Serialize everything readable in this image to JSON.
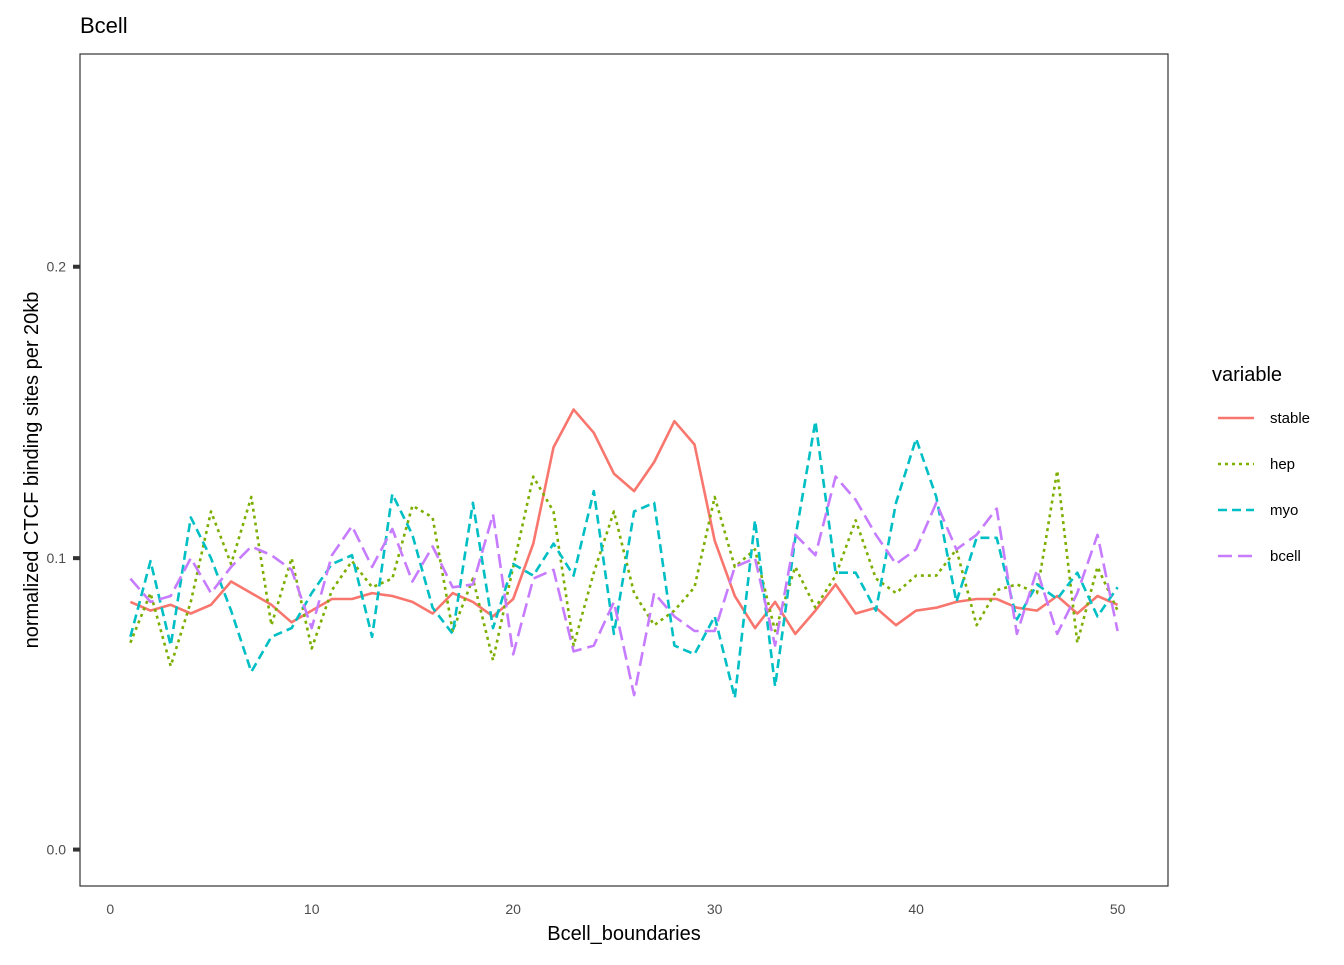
{
  "chart_data": {
    "type": "line",
    "title": "Bcell",
    "xlabel": "Bcell_boundaries",
    "ylabel": "normalized CTCF binding sites per 20kb",
    "xlim": [
      -1.5,
      52.5
    ],
    "ylim": [
      -0.0125,
      0.273
    ],
    "x_ticks": [
      0,
      10,
      20,
      30,
      40,
      50
    ],
    "y_ticks": [
      0.0,
      0.1,
      0.2
    ],
    "x_tick_labels": [
      "0",
      "10",
      "20",
      "30",
      "40",
      "50"
    ],
    "y_tick_labels": [
      "0.0",
      "0.1",
      "0.2"
    ],
    "grid": false,
    "legend": {
      "title": "variable",
      "position": "right"
    },
    "x": [
      1,
      2,
      3,
      4,
      5,
      6,
      7,
      8,
      9,
      10,
      11,
      12,
      13,
      14,
      15,
      16,
      17,
      18,
      19,
      20,
      21,
      22,
      23,
      24,
      25,
      26,
      27,
      28,
      29,
      30,
      31,
      32,
      33,
      34,
      35,
      36,
      37,
      38,
      39,
      40,
      41,
      42,
      43,
      44,
      45,
      46,
      47,
      48,
      49,
      50
    ],
    "series": [
      {
        "name": "stable",
        "color": "#F8766D",
        "dash": "solid",
        "values": [
          0.085,
          0.082,
          0.084,
          0.081,
          0.084,
          0.092,
          0.088,
          0.084,
          0.078,
          0.082,
          0.086,
          0.086,
          0.088,
          0.087,
          0.085,
          0.081,
          0.088,
          0.085,
          0.08,
          0.086,
          0.105,
          0.138,
          0.151,
          0.143,
          0.129,
          0.123,
          0.133,
          0.147,
          0.139,
          0.106,
          0.087,
          0.076,
          0.085,
          0.074,
          0.082,
          0.091,
          0.081,
          0.083,
          0.077,
          0.082,
          0.083,
          0.085,
          0.086,
          0.086,
          0.083,
          0.082,
          0.087,
          0.081,
          0.087,
          0.084
        ]
      },
      {
        "name": "hep",
        "color": "#7CAE00",
        "dash": "3,4",
        "values": [
          0.071,
          0.088,
          0.063,
          0.085,
          0.116,
          0.098,
          0.121,
          0.077,
          0.1,
          0.069,
          0.089,
          0.099,
          0.09,
          0.093,
          0.118,
          0.114,
          0.075,
          0.093,
          0.065,
          0.097,
          0.128,
          0.116,
          0.07,
          0.095,
          0.116,
          0.088,
          0.077,
          0.082,
          0.09,
          0.121,
          0.097,
          0.103,
          0.075,
          0.097,
          0.083,
          0.094,
          0.113,
          0.093,
          0.088,
          0.094,
          0.094,
          0.103,
          0.077,
          0.089,
          0.091,
          0.088,
          0.13,
          0.071,
          0.097,
          0.082
        ]
      },
      {
        "name": "myo",
        "color": "#00BFC4",
        "dash": "9,5",
        "values": [
          0.073,
          0.099,
          0.07,
          0.114,
          0.1,
          0.082,
          0.061,
          0.073,
          0.076,
          0.088,
          0.098,
          0.101,
          0.073,
          0.122,
          0.108,
          0.083,
          0.074,
          0.119,
          0.076,
          0.098,
          0.094,
          0.105,
          0.094,
          0.123,
          0.074,
          0.116,
          0.119,
          0.07,
          0.067,
          0.08,
          0.052,
          0.113,
          0.056,
          0.107,
          0.147,
          0.095,
          0.095,
          0.082,
          0.119,
          0.141,
          0.121,
          0.085,
          0.107,
          0.107,
          0.079,
          0.091,
          0.086,
          0.095,
          0.08,
          0.09
        ]
      },
      {
        "name": "bcell",
        "color": "#C77CFF",
        "dash": "14,6",
        "values": [
          0.093,
          0.085,
          0.087,
          0.1,
          0.088,
          0.097,
          0.104,
          0.101,
          0.096,
          0.076,
          0.101,
          0.111,
          0.097,
          0.11,
          0.092,
          0.104,
          0.09,
          0.091,
          0.115,
          0.067,
          0.093,
          0.096,
          0.068,
          0.07,
          0.085,
          0.053,
          0.088,
          0.08,
          0.075,
          0.075,
          0.097,
          0.1,
          0.07,
          0.108,
          0.101,
          0.128,
          0.12,
          0.108,
          0.098,
          0.103,
          0.119,
          0.103,
          0.108,
          0.117,
          0.074,
          0.096,
          0.074,
          0.088,
          0.108,
          0.075
        ]
      }
    ]
  }
}
